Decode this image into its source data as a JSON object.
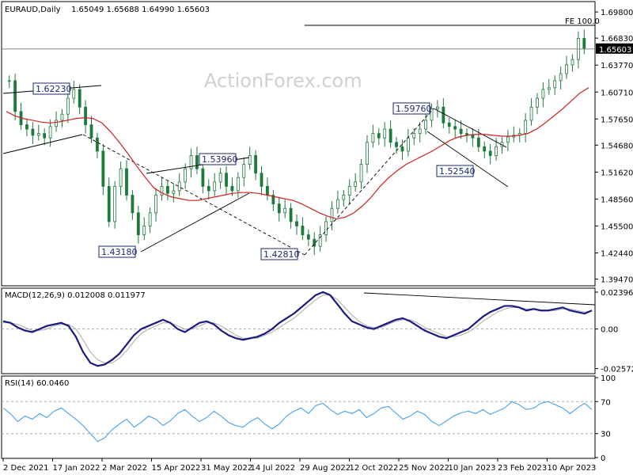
{
  "header": {
    "symbol": "EURAUD,Daily",
    "ohlc": "1.65049 1.65688 1.64990 1.65603"
  },
  "watermark": "ActionForex.com",
  "colors": {
    "candle": "#1c7a3a",
    "ma": "#cc2222",
    "macd_line": "#1a1a80",
    "signal_line": "#aaaaaa",
    "rsi_line": "#3399ee",
    "label_border": "#1a2a6e",
    "price_tag_bg": "#000000"
  },
  "chart_data": [
    {
      "type": "candlestick",
      "title": "EURAUD,Daily",
      "ylim": [
        1.388,
        1.708
      ],
      "y_ticks": [
        "1.69800",
        "1.66830",
        "1.63770",
        "1.60710",
        "1.57650",
        "1.54680",
        "1.51620",
        "1.48560",
        "1.45500",
        "1.42440",
        "1.39470"
      ],
      "current_price": "1.65603",
      "x_ticks": [
        "2 Dec 2021",
        "17 Jan 2022",
        "2 Mar 2022",
        "15 Apr 2022",
        "31 May 2022",
        "14 Jul 2022",
        "29 Aug 2022",
        "12 Oct 2022",
        "25 Nov 2022",
        "10 Jan 2023",
        "23 Feb 2023",
        "10 Apr 2023"
      ],
      "annotations": [
        {
          "text": "1.62230",
          "value": 1.6223
        },
        {
          "text": "1.53960",
          "value": 1.5396
        },
        {
          "text": "1.43180",
          "value": 1.4318
        },
        {
          "text": "1.42810",
          "value": 1.4281
        },
        {
          "text": "1.59760",
          "value": 1.5976
        },
        {
          "text": "1.52540",
          "value": 1.5254
        },
        {
          "text": "FE 100.0",
          "value": 1.6895
        }
      ],
      "series": [
        {
          "name": "Close",
          "values": [
            1.62,
            1.585,
            1.57,
            1.565,
            1.558,
            1.56,
            1.555,
            1.568,
            1.575,
            1.582,
            1.6,
            1.61,
            1.59,
            1.57,
            1.555,
            1.54,
            1.5,
            1.46,
            1.5,
            1.52,
            1.49,
            1.47,
            1.445,
            1.455,
            1.47,
            1.49,
            1.5,
            1.492,
            1.495,
            1.505,
            1.52,
            1.535,
            1.52,
            1.5,
            1.495,
            1.505,
            1.515,
            1.5,
            1.495,
            1.51,
            1.525,
            1.535,
            1.515,
            1.5,
            1.49,
            1.48,
            1.47,
            1.475,
            1.46,
            1.455,
            1.445,
            1.44,
            1.432,
            1.445,
            1.46,
            1.475,
            1.485,
            1.49,
            1.5,
            1.505,
            1.525,
            1.55,
            1.56,
            1.555,
            1.565,
            1.55,
            1.545,
            1.54,
            1.555,
            1.56,
            1.565,
            1.575,
            1.588,
            1.59,
            1.572,
            1.568,
            1.565,
            1.56,
            1.558,
            1.555,
            1.545,
            1.54,
            1.535,
            1.545,
            1.55,
            1.556,
            1.558,
            1.56,
            1.575,
            1.59,
            1.6,
            1.61,
            1.612,
            1.62,
            1.628,
            1.638,
            1.644,
            1.668,
            1.656
          ]
        },
        {
          "name": "MA",
          "values": [
            1.585,
            1.58,
            1.577,
            1.575,
            1.573,
            1.572,
            1.573,
            1.575,
            1.577,
            1.578,
            1.577,
            1.572,
            1.562,
            1.55,
            1.537,
            1.523,
            1.51,
            1.498,
            1.492,
            1.488,
            1.486,
            1.484,
            1.484,
            1.486,
            1.488,
            1.49,
            1.492,
            1.493,
            1.493,
            1.492,
            1.49,
            1.488,
            1.486,
            1.484,
            1.48,
            1.475,
            1.47,
            1.466,
            1.463,
            1.465,
            1.47,
            1.478,
            1.488,
            1.5,
            1.51,
            1.518,
            1.525,
            1.53,
            1.535,
            1.54,
            1.546,
            1.552,
            1.556,
            1.558,
            1.559,
            1.559,
            1.558,
            1.557,
            1.557,
            1.558,
            1.56,
            1.565,
            1.572,
            1.58,
            1.588,
            1.597,
            1.606,
            1.612
          ]
        }
      ]
    },
    {
      "type": "line",
      "title": "MACD(12,26,9) 0.012008 0.011977",
      "ylim": [
        -0.0285,
        0.0255
      ],
      "y_ticks": [
        "0.023963",
        "0.00",
        "-0.025726"
      ],
      "series": [
        {
          "name": "MACD",
          "values": [
            0.005,
            0.004,
            0.001,
            -0.001,
            -0.002,
            0.0,
            0.002,
            0.003,
            0.004,
            0.002,
            -0.005,
            -0.015,
            -0.022,
            -0.024,
            -0.023,
            -0.02,
            -0.016,
            -0.01,
            -0.004,
            0.0,
            0.002,
            0.004,
            0.006,
            0.004,
            0.0,
            -0.002,
            0.001,
            0.004,
            0.005,
            0.003,
            -0.001,
            -0.004,
            -0.006,
            -0.007,
            -0.006,
            -0.005,
            -0.003,
            0.0,
            0.004,
            0.007,
            0.01,
            0.014,
            0.018,
            0.022,
            0.024,
            0.022,
            0.016,
            0.01,
            0.005,
            0.003,
            0.001,
            0.0,
            0.002,
            0.004,
            0.006,
            0.007,
            0.005,
            0.002,
            -0.001,
            -0.003,
            -0.005,
            -0.006,
            -0.004,
            -0.002,
            0.0,
            0.004,
            0.008,
            0.011,
            0.013,
            0.015,
            0.015,
            0.014,
            0.012,
            0.013,
            0.012,
            0.012,
            0.013,
            0.014,
            0.012,
            0.011,
            0.01,
            0.012
          ]
        },
        {
          "name": "Signal",
          "values": [
            0.004,
            0.004,
            0.003,
            0.001,
            -0.001,
            -0.001,
            0.0,
            0.002,
            0.003,
            0.003,
            0.0,
            -0.007,
            -0.015,
            -0.02,
            -0.022,
            -0.022,
            -0.019,
            -0.014,
            -0.008,
            -0.003,
            0.0,
            0.002,
            0.004,
            0.004,
            0.002,
            0.0,
            0.0,
            0.002,
            0.004,
            0.004,
            0.002,
            -0.001,
            -0.004,
            -0.006,
            -0.006,
            -0.006,
            -0.004,
            -0.002,
            0.001,
            0.004,
            0.007,
            0.011,
            0.015,
            0.019,
            0.022,
            0.022,
            0.019,
            0.014,
            0.009,
            0.005,
            0.002,
            0.001,
            0.001,
            0.003,
            0.005,
            0.006,
            0.006,
            0.004,
            0.001,
            -0.001,
            -0.003,
            -0.005,
            -0.005,
            -0.004,
            -0.002,
            0.001,
            0.005,
            0.008,
            0.011,
            0.013,
            0.014,
            0.014,
            0.013,
            0.013,
            0.012,
            0.012,
            0.012,
            0.013,
            0.013,
            0.012,
            0.011,
            0.012
          ]
        }
      ]
    },
    {
      "type": "line",
      "title": "RSI(14) 60.0460",
      "ylim": [
        0,
        100
      ],
      "y_ticks": [
        "100",
        "70",
        "30",
        "0"
      ],
      "series": [
        {
          "name": "RSI",
          "values": [
            62,
            55,
            45,
            52,
            48,
            55,
            50,
            58,
            62,
            55,
            48,
            40,
            30,
            20,
            25,
            35,
            42,
            48,
            38,
            44,
            52,
            48,
            40,
            46,
            55,
            60,
            52,
            45,
            50,
            58,
            52,
            44,
            40,
            38,
            45,
            50,
            42,
            36,
            42,
            52,
            58,
            62,
            55,
            65,
            68,
            60,
            54,
            58,
            55,
            60,
            50,
            55,
            62,
            64,
            56,
            48,
            52,
            58,
            54,
            45,
            40,
            46,
            52,
            56,
            58,
            55,
            60,
            54,
            58,
            62,
            70,
            66,
            60,
            62,
            68,
            70,
            66,
            62,
            55,
            62,
            68,
            60
          ]
        }
      ]
    }
  ]
}
